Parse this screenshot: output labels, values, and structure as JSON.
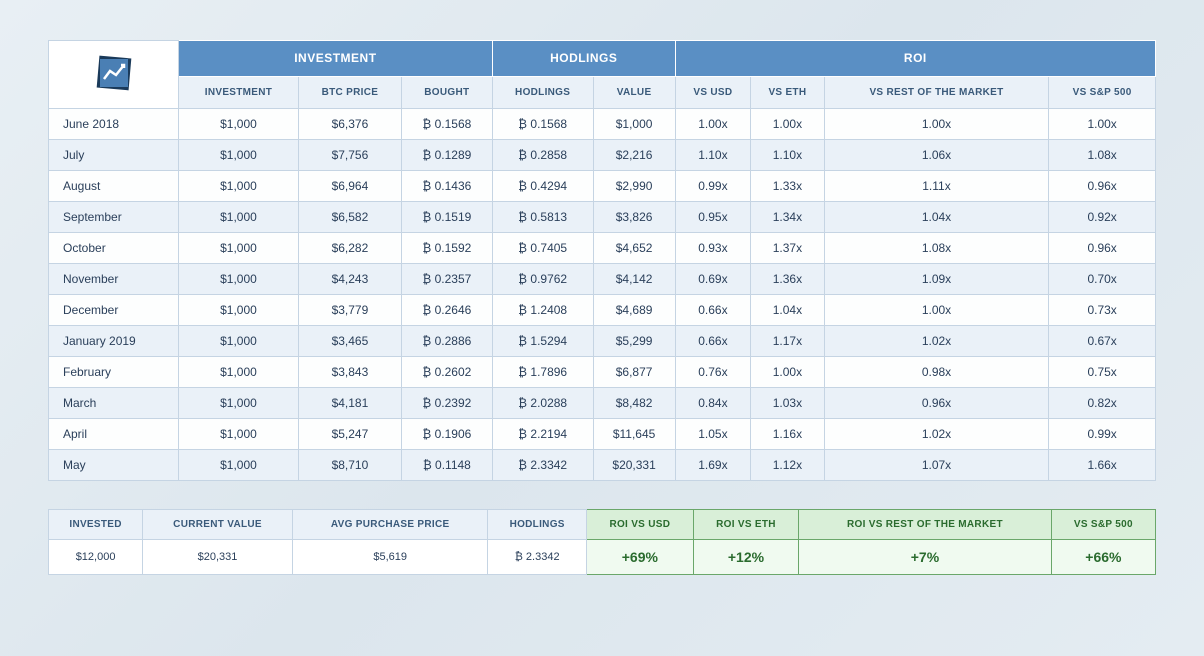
{
  "headers": {
    "group_investment": "INVESTMENT",
    "group_hodlings": "HODLINGS",
    "group_roi": "ROI",
    "sub_investment": "INVESTMENT",
    "sub_btc_price": "BTC PRICE",
    "sub_bought": "BOUGHT",
    "sub_hodlings": "HODLINGS",
    "sub_value": "VALUE",
    "sub_vs_usd": "VS USD",
    "sub_vs_eth": "VS ETH",
    "sub_vs_rest": "VS REST OF THE MARKET",
    "sub_vs_sp500": "VS S&P 500"
  },
  "rows": [
    {
      "month": "June 2018",
      "investment": "$1,000",
      "btc_price": "$6,376",
      "bought": "₿ 0.1568",
      "hodlings": "₿ 0.1568",
      "value": "$1,000",
      "vs_usd": "1.00x",
      "vs_eth": "1.00x",
      "vs_rest": "1.00x",
      "vs_sp500": "1.00x"
    },
    {
      "month": "July",
      "investment": "$1,000",
      "btc_price": "$7,756",
      "bought": "₿ 0.1289",
      "hodlings": "₿ 0.2858",
      "value": "$2,216",
      "vs_usd": "1.10x",
      "vs_eth": "1.10x",
      "vs_rest": "1.06x",
      "vs_sp500": "1.08x"
    },
    {
      "month": "August",
      "investment": "$1,000",
      "btc_price": "$6,964",
      "bought": "₿ 0.1436",
      "hodlings": "₿ 0.4294",
      "value": "$2,990",
      "vs_usd": "0.99x",
      "vs_eth": "1.33x",
      "vs_rest": "1.11x",
      "vs_sp500": "0.96x"
    },
    {
      "month": "September",
      "investment": "$1,000",
      "btc_price": "$6,582",
      "bought": "₿ 0.1519",
      "hodlings": "₿ 0.5813",
      "value": "$3,826",
      "vs_usd": "0.95x",
      "vs_eth": "1.34x",
      "vs_rest": "1.04x",
      "vs_sp500": "0.92x"
    },
    {
      "month": "October",
      "investment": "$1,000",
      "btc_price": "$6,282",
      "bought": "₿ 0.1592",
      "hodlings": "₿ 0.7405",
      "value": "$4,652",
      "vs_usd": "0.93x",
      "vs_eth": "1.37x",
      "vs_rest": "1.08x",
      "vs_sp500": "0.96x"
    },
    {
      "month": "November",
      "investment": "$1,000",
      "btc_price": "$4,243",
      "bought": "₿ 0.2357",
      "hodlings": "₿ 0.9762",
      "value": "$4,142",
      "vs_usd": "0.69x",
      "vs_eth": "1.36x",
      "vs_rest": "1.09x",
      "vs_sp500": "0.70x"
    },
    {
      "month": "December",
      "investment": "$1,000",
      "btc_price": "$3,779",
      "bought": "₿ 0.2646",
      "hodlings": "₿ 1.2408",
      "value": "$4,689",
      "vs_usd": "0.66x",
      "vs_eth": "1.04x",
      "vs_rest": "1.00x",
      "vs_sp500": "0.73x"
    },
    {
      "month": "January 2019",
      "investment": "$1,000",
      "btc_price": "$3,465",
      "bought": "₿ 0.2886",
      "hodlings": "₿ 1.5294",
      "value": "$5,299",
      "vs_usd": "0.66x",
      "vs_eth": "1.17x",
      "vs_rest": "1.02x",
      "vs_sp500": "0.67x"
    },
    {
      "month": "February",
      "investment": "$1,000",
      "btc_price": "$3,843",
      "bought": "₿ 0.2602",
      "hodlings": "₿ 1.7896",
      "value": "$6,877",
      "vs_usd": "0.76x",
      "vs_eth": "1.00x",
      "vs_rest": "0.98x",
      "vs_sp500": "0.75x"
    },
    {
      "month": "March",
      "investment": "$1,000",
      "btc_price": "$4,181",
      "bought": "₿ 0.2392",
      "hodlings": "₿ 2.0288",
      "value": "$8,482",
      "vs_usd": "0.84x",
      "vs_eth": "1.03x",
      "vs_rest": "0.96x",
      "vs_sp500": "0.82x"
    },
    {
      "month": "April",
      "investment": "$1,000",
      "btc_price": "$5,247",
      "bought": "₿ 0.1906",
      "hodlings": "₿ 2.2194",
      "value": "$11,645",
      "vs_usd": "1.05x",
      "vs_eth": "1.16x",
      "vs_rest": "1.02x",
      "vs_sp500": "0.99x"
    },
    {
      "month": "May",
      "investment": "$1,000",
      "btc_price": "$8,710",
      "bought": "₿ 0.1148",
      "hodlings": "₿ 2.3342",
      "value": "$20,331",
      "vs_usd": "1.69x",
      "vs_eth": "1.12x",
      "vs_rest": "1.07x",
      "vs_sp500": "1.66x"
    }
  ],
  "summary": {
    "headers": {
      "invested": "INVESTED",
      "current_value": "CURRENT VALUE",
      "avg_price": "AVG PURCHASE PRICE",
      "hodlings": "HODLINGS",
      "roi_vs_usd": "ROI VS USD",
      "roi_vs_eth": "ROI VS ETH",
      "roi_vs_rest": "ROI VS REST OF THE MARKET",
      "vs_sp500": "VS S&P 500"
    },
    "values": {
      "invested": "$12,000",
      "current_value": "$20,331",
      "avg_price": "$5,619",
      "hodlings": "₿ 2.3342",
      "roi_vs_usd": "+69%",
      "roi_vs_eth": "+12%",
      "roi_vs_rest": "+7%",
      "vs_sp500": "+66%"
    }
  },
  "colors": {
    "header_bg": "#5a8fc4",
    "subheader_bg": "#eaf1f8",
    "border": "#c5d4e3",
    "row_alt": "#eaf1f8",
    "roi_header_bg": "#d9efd8",
    "roi_value_bg": "#f0faf0",
    "roi_text": "#2a6b2e",
    "roi_border": "#6aa76a"
  }
}
